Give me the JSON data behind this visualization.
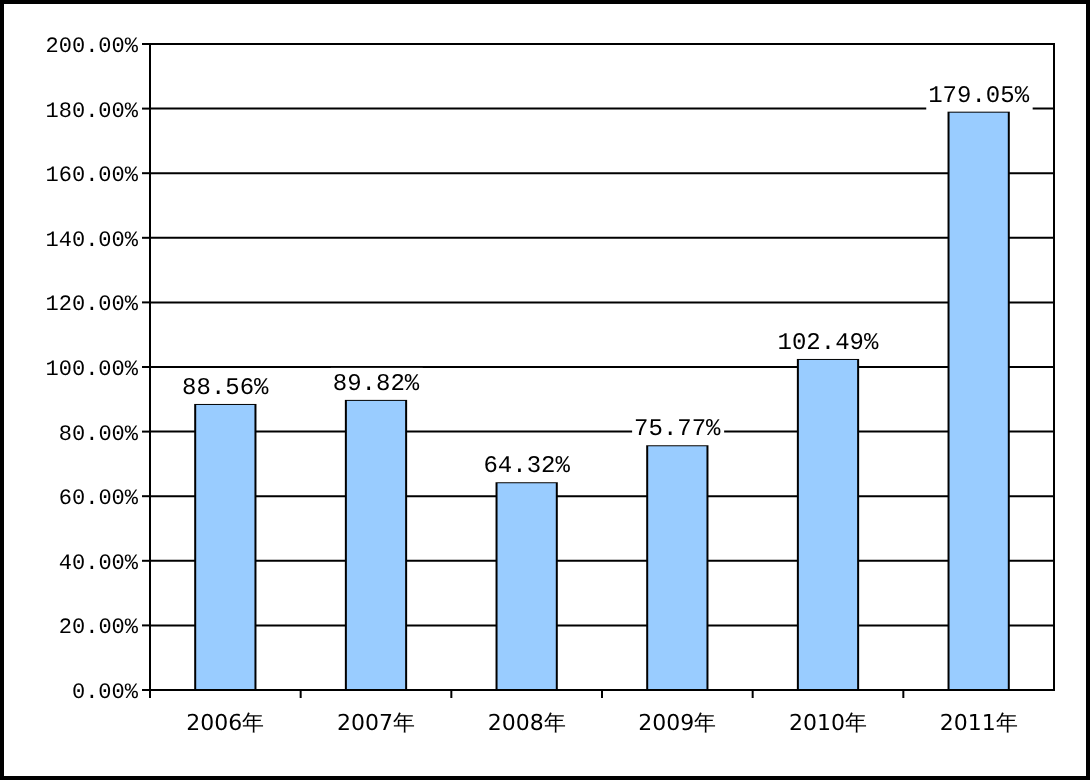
{
  "chart_data": {
    "type": "bar",
    "categories": [
      "2006年",
      "2007年",
      "2008年",
      "2009年",
      "2010年",
      "2011年"
    ],
    "values": [
      88.56,
      89.82,
      64.32,
      75.77,
      102.49,
      179.05
    ],
    "value_labels": [
      "88.56%",
      "89.82%",
      "64.32%",
      "75.77%",
      "102.49%",
      "179.05%"
    ],
    "color": "#99ccff",
    "ylim": [
      0,
      200
    ],
    "yticks": [
      {
        "value": 0,
        "label": "0.00%"
      },
      {
        "value": 20,
        "label": "20.00%"
      },
      {
        "value": 40,
        "label": "40.00%"
      },
      {
        "value": 60,
        "label": "60.00%"
      },
      {
        "value": 80,
        "label": "80.00%"
      },
      {
        "value": 100,
        "label": "100.00%"
      },
      {
        "value": 120,
        "label": "120.00%"
      },
      {
        "value": 140,
        "label": "140.00%"
      },
      {
        "value": 160,
        "label": "160.00%"
      },
      {
        "value": 180,
        "label": "180.00%"
      },
      {
        "value": 200,
        "label": "200.00%"
      }
    ],
    "grid": "y"
  }
}
